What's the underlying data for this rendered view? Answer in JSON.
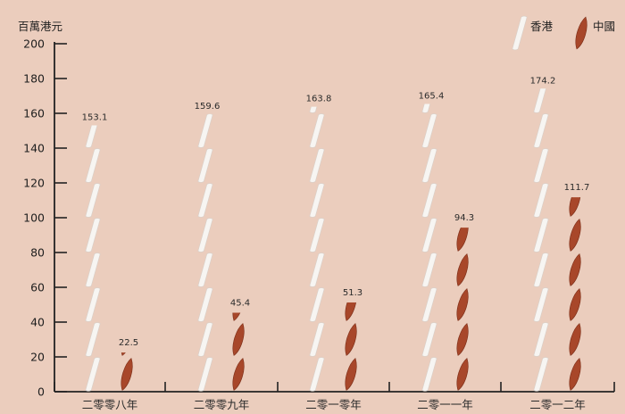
{
  "colors": {
    "background": "#ebcdbd",
    "hong_kong": "#f7f5f2",
    "hong_kong_edge": "#d8cfc8",
    "china": "#a8472a",
    "china_dark": "#7a2c16",
    "axis": "#222222"
  },
  "chart_data": {
    "type": "bar",
    "style": "pictograph",
    "unit_label": "百萬港元",
    "categories": [
      "二零零八年",
      "二零零九年",
      "二零一零年",
      "二零一一年",
      "二零一二年"
    ],
    "series": [
      {
        "name": "香港",
        "values": [
          153.1,
          159.6,
          163.8,
          165.4,
          174.2
        ],
        "icon": "chalk-stick-white-icon"
      },
      {
        "name": "中國",
        "values": [
          22.5,
          45.4,
          51.3,
          94.3,
          111.7
        ],
        "icon": "chili-pepper-red-icon"
      }
    ],
    "data_labels": [
      [
        "153.1",
        "159.6",
        "163.8",
        "165.4",
        "174.2"
      ],
      [
        "22.5",
        "45.4",
        "51.3",
        "94.3",
        "111.7"
      ]
    ],
    "ylim": [
      0,
      200
    ],
    "yticks": [
      "0",
      "20",
      "40",
      "60",
      "80",
      "100",
      "120",
      "140",
      "160",
      "180",
      "200"
    ],
    "grid": false,
    "legend_position": "top-right"
  }
}
